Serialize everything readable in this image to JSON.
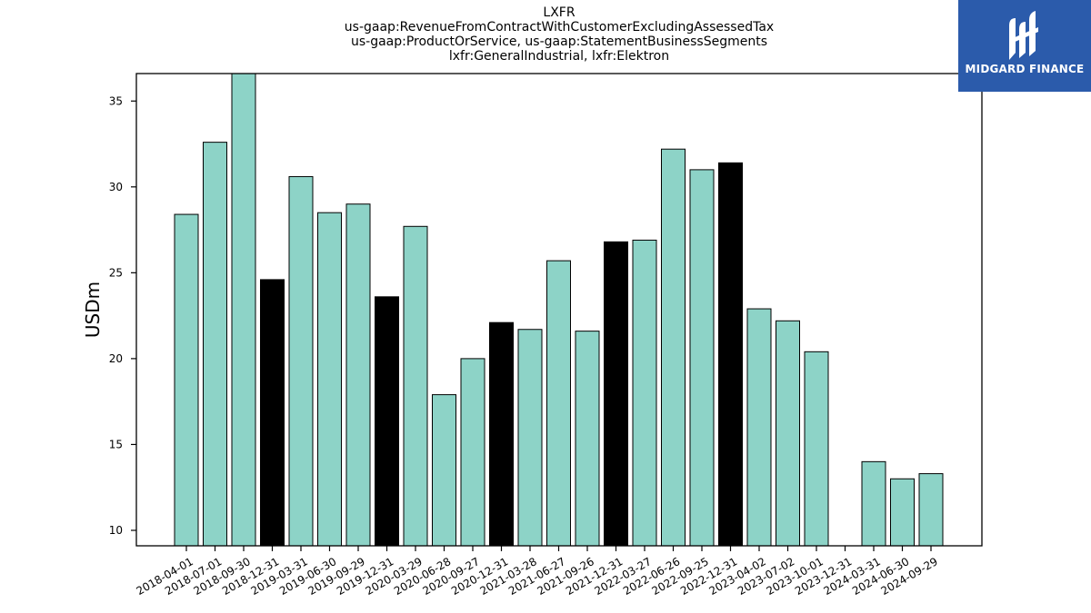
{
  "title_lines": [
    "LXFR",
    "us-gaap:RevenueFromContractWithCustomerExcludingAssessedTax",
    "us-gaap:ProductOrService, us-gaap:StatementBusinessSegments",
    "lxfr:GeneralIndustrial, lxfr:Elektron"
  ],
  "logo": {
    "text": "MIDGARD FINANCE",
    "icon": "midgard-logo-icon",
    "background": "#2b5bab"
  },
  "colors": {
    "normal": "#8dd3c7",
    "q4": "#000000",
    "edge": "#000000"
  },
  "chart_data": {
    "type": "bar",
    "categories": [
      "2018-04-01",
      "2018-07-01",
      "2018-09-30",
      "2018-12-31",
      "2019-03-31",
      "2019-06-30",
      "2019-09-29",
      "2019-12-31",
      "2020-03-29",
      "2020-06-28",
      "2020-09-27",
      "2020-12-31",
      "2021-03-28",
      "2021-06-27",
      "2021-09-26",
      "2021-12-31",
      "2022-03-27",
      "2022-06-26",
      "2022-09-25",
      "2022-12-31",
      "2023-04-02",
      "2023-07-02",
      "2023-10-01",
      "2023-12-31",
      "2024-03-31",
      "2024-06-30",
      "2024-09-29"
    ],
    "values": [
      28.4,
      32.6,
      36.6,
      24.6,
      30.6,
      28.5,
      29.0,
      23.6,
      27.7,
      17.9,
      20.0,
      22.1,
      21.7,
      25.7,
      21.6,
      26.8,
      26.9,
      32.2,
      31.0,
      31.4,
      22.9,
      22.2,
      20.4,
      null,
      14.0,
      13.0,
      13.3
    ],
    "highlight": [
      false,
      false,
      false,
      true,
      false,
      false,
      false,
      true,
      false,
      false,
      false,
      true,
      false,
      false,
      false,
      true,
      false,
      false,
      false,
      true,
      false,
      false,
      false,
      true,
      false,
      false,
      false
    ],
    "ylabel": "USDm",
    "ylim": [
      9.1,
      36.6
    ],
    "yticks": [
      10,
      15,
      20,
      25,
      30,
      35
    ],
    "grid": false
  }
}
